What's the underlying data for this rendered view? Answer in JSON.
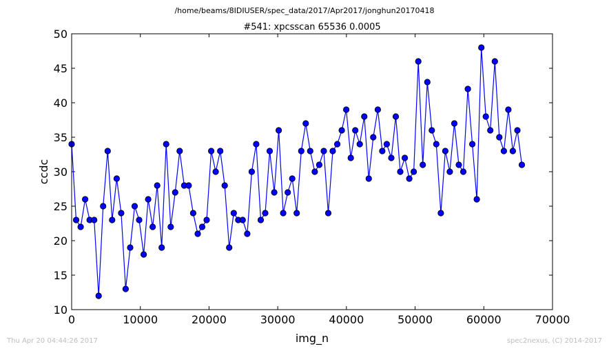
{
  "header": {
    "path": "/home/beams/8IDIUSER/spec_data/2017/Apr2017/jonghun20170418"
  },
  "footer": {
    "timestamp": "Thu Apr 20 04:44:26 2017",
    "credit": "spec2nexus, (C) 2014-2017"
  },
  "chart_data": {
    "type": "line",
    "title": "#541: xpcsscan 65536 0.0005",
    "xlabel": "img_n",
    "ylabel": "ccdc",
    "xlim": [
      0,
      70000
    ],
    "ylim": [
      10,
      50
    ],
    "xticks": [
      0,
      10000,
      20000,
      30000,
      40000,
      50000,
      60000,
      70000
    ],
    "yticks": [
      10,
      15,
      20,
      25,
      30,
      35,
      40,
      45,
      50
    ],
    "grid": false,
    "marker": "circle",
    "line_color": "#0000ff",
    "marker_color": "#0000ff",
    "series": [
      {
        "x": [
          0,
          655,
          1311,
          1966,
          2621,
          3277,
          3932,
          4588,
          5243,
          5898,
          6554,
          7209,
          7864,
          8520,
          9175,
          9830,
          10486,
          11141,
          11796,
          12452,
          13107,
          13762,
          14418,
          15073,
          15729,
          16384,
          17039,
          17695,
          18350,
          19005,
          19661,
          20316,
          20972,
          21627,
          22282,
          22938,
          23593,
          24248,
          24904,
          25559,
          26214,
          26870,
          27525,
          28180,
          28836,
          29491,
          30147,
          30802,
          31457,
          32113,
          32768,
          33423,
          34079,
          34734,
          35389,
          36045,
          36700,
          37356,
          38011,
          38666,
          39322,
          39977,
          40632,
          41288,
          41943,
          42598,
          43254,
          43909,
          44564,
          45220,
          45875,
          46531,
          47186,
          47841,
          48497,
          49152,
          49807,
          50463,
          51118,
          51773,
          52429,
          53084,
          53740,
          54395,
          55050,
          55706,
          56361,
          57016,
          57672,
          58327,
          58982,
          59638,
          60293,
          60948,
          61604,
          62259,
          62915,
          63570,
          64225,
          64881,
          65536
        ],
        "y": [
          34,
          23,
          22,
          26,
          23,
          23,
          12,
          25,
          33,
          23,
          29,
          24,
          13,
          19,
          25,
          23,
          18,
          26,
          22,
          28,
          19,
          34,
          22,
          27,
          33,
          28,
          28,
          24,
          21,
          22,
          23,
          33,
          30,
          33,
          28,
          19,
          24,
          23,
          23,
          21,
          30,
          34,
          23,
          24,
          33,
          27,
          36,
          24,
          27,
          29,
          24,
          33,
          37,
          33,
          30,
          31,
          33,
          24,
          33,
          34,
          36,
          39,
          32,
          36,
          34,
          38,
          29,
          35,
          39,
          33,
          34,
          32,
          38,
          30,
          32,
          29,
          30,
          46,
          31,
          43,
          36,
          34,
          24,
          33,
          30,
          37,
          31,
          30,
          42,
          34,
          26,
          48,
          38,
          36,
          46,
          35,
          33,
          39,
          33,
          36,
          31
        ]
      }
    ]
  }
}
